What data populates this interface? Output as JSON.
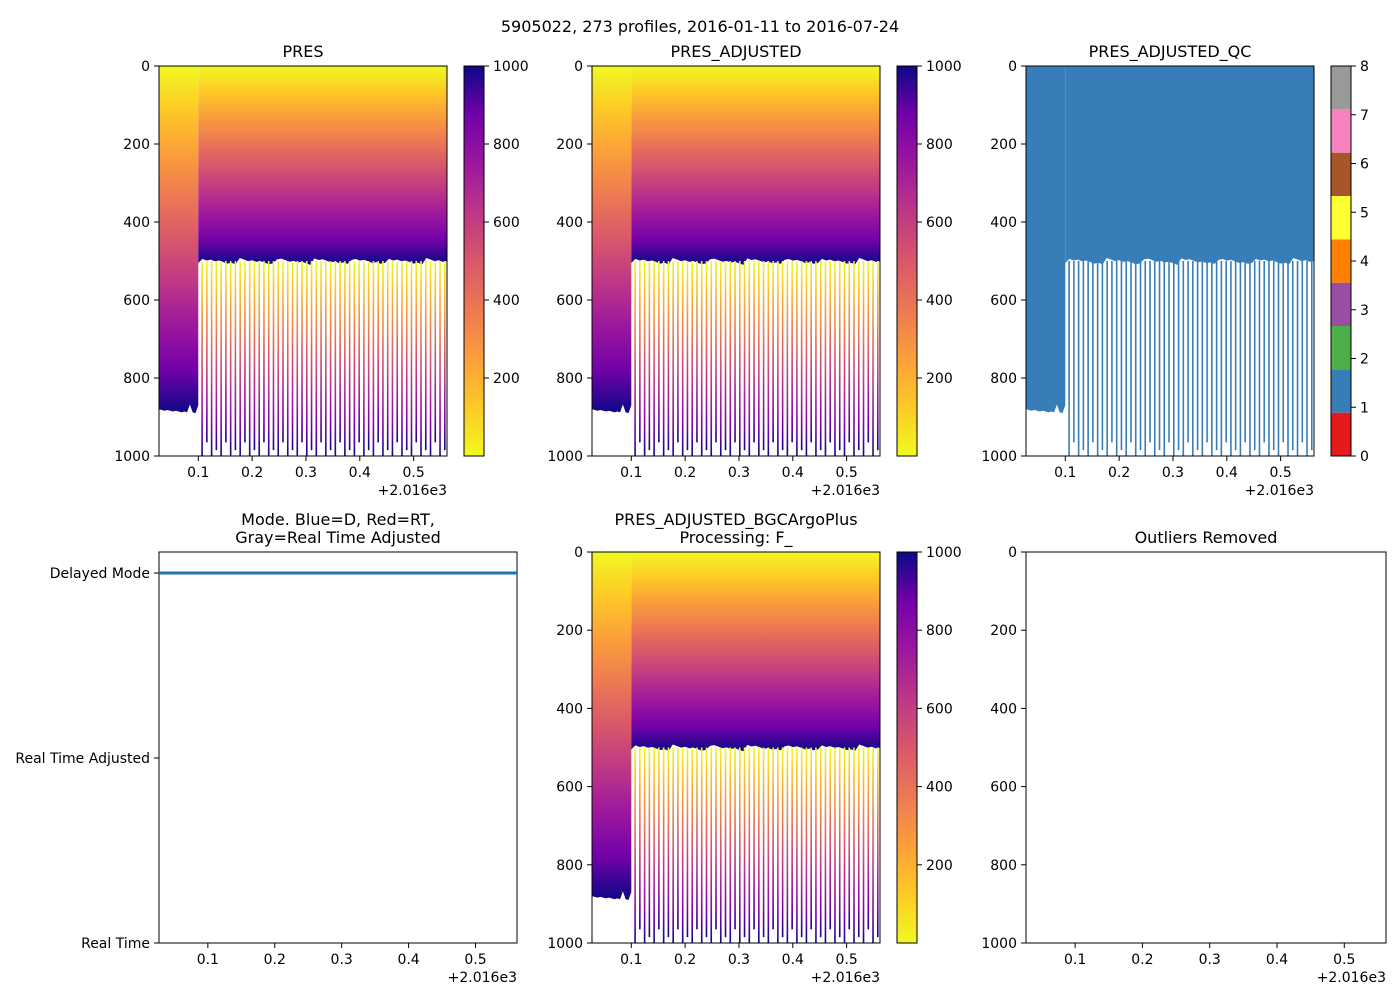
{
  "suptitle": "5905022, 273 profiles, 2016-01-11 to 2016-07-24",
  "chart_data": [
    {
      "type": "heatmap",
      "title": "PRES",
      "x_offset_label": "+2.016e3",
      "x_ticks": [
        "0.1",
        "0.2",
        "0.3",
        "0.4",
        "0.5"
      ],
      "y_ticks": [
        "0",
        "200",
        "400",
        "600",
        "800",
        "1000"
      ],
      "xlim": [
        0.027,
        0.562
      ],
      "ylim": [
        1000,
        0
      ],
      "colormap": "plasma_r",
      "colorbar_ticks": [
        "200",
        "400",
        "600",
        "800",
        "1000"
      ],
      "colorbar_range": [
        0,
        1000
      ],
      "early_segment": {
        "x_end": 0.1,
        "max_depth": 890
      },
      "later_profiles": {
        "x_start": 0.1,
        "x_end": 0.562,
        "surface_limit": 505,
        "deep_lines_to": 1000
      }
    },
    {
      "type": "heatmap",
      "title": "PRES_ADJUSTED",
      "x_offset_label": "+2.016e3",
      "x_ticks": [
        "0.1",
        "0.2",
        "0.3",
        "0.4",
        "0.5"
      ],
      "y_ticks": [
        "0",
        "200",
        "400",
        "600",
        "800",
        "1000"
      ],
      "xlim": [
        0.027,
        0.562
      ],
      "ylim": [
        1000,
        0
      ],
      "colormap": "plasma_r",
      "colorbar_ticks": [
        "200",
        "400",
        "600",
        "800",
        "1000"
      ],
      "colorbar_range": [
        0,
        1000
      ],
      "early_segment": {
        "x_end": 0.1,
        "max_depth": 890
      },
      "later_profiles": {
        "x_start": 0.1,
        "x_end": 0.562,
        "surface_limit": 505,
        "deep_lines_to": 1000
      }
    },
    {
      "type": "heatmap",
      "title": "PRES_ADJUSTED_QC",
      "x_offset_label": "+2.016e3",
      "x_ticks": [
        "0.1",
        "0.2",
        "0.3",
        "0.4",
        "0.5"
      ],
      "y_ticks": [
        "0",
        "200",
        "400",
        "600",
        "800",
        "1000"
      ],
      "xlim": [
        0.027,
        0.562
      ],
      "ylim": [
        1000,
        0
      ],
      "qc_value": 1,
      "colorbar_ticks": [
        "0",
        "1",
        "2",
        "3",
        "4",
        "5",
        "6",
        "7",
        "8"
      ],
      "qc_colors": [
        "#e41a1c",
        "#377eb8",
        "#4daf4a",
        "#984ea3",
        "#ff7f00",
        "#ffff33",
        "#a65628",
        "#f781bf",
        "#999999"
      ],
      "early_segment": {
        "x_end": 0.1,
        "max_depth": 890
      },
      "later_profiles": {
        "x_start": 0.1,
        "x_end": 0.562,
        "surface_limit": 505,
        "deep_lines_to": 1000
      }
    },
    {
      "type": "line",
      "title_line1": "Mode. Blue=D, Red=RT,",
      "title_line2": "Gray=Real Time Adjusted",
      "x_offset_label": "+2.016e3",
      "x_ticks": [
        "0.1",
        "0.2",
        "0.3",
        "0.4",
        "0.5"
      ],
      "xlim": [
        0.027,
        0.562
      ],
      "y_categories": [
        "Delayed Mode",
        "Real Time Adjusted",
        "Real Time"
      ],
      "series": [
        {
          "name": "D",
          "color": "#1f77b4",
          "y": "Delayed Mode",
          "x": [
            0.027,
            0.562
          ]
        }
      ]
    },
    {
      "type": "heatmap",
      "title_line1": "PRES_ADJUSTED_BGCArgoPlus",
      "title_line2": "Processing: F_",
      "x_offset_label": "+2.016e3",
      "x_ticks": [
        "0.1",
        "0.2",
        "0.3",
        "0.4",
        "0.5"
      ],
      "y_ticks": [
        "0",
        "200",
        "400",
        "600",
        "800",
        "1000"
      ],
      "xlim": [
        0.027,
        0.562
      ],
      "ylim": [
        1000,
        0
      ],
      "colormap": "plasma_r",
      "colorbar_ticks": [
        "200",
        "400",
        "600",
        "800",
        "1000"
      ],
      "colorbar_range": [
        0,
        1000
      ],
      "early_segment": {
        "x_end": 0.1,
        "max_depth": 890
      },
      "later_profiles": {
        "x_start": 0.1,
        "x_end": 0.562,
        "surface_limit": 505,
        "deep_lines_to": 1000
      }
    },
    {
      "type": "scatter",
      "title": "Outliers Removed",
      "x_offset_label": "+2.016e3",
      "x_ticks": [
        "0.1",
        "0.2",
        "0.3",
        "0.4",
        "0.5"
      ],
      "y_ticks": [
        "0",
        "200",
        "400",
        "600",
        "800",
        "1000"
      ],
      "xlim": [
        0.027,
        0.562
      ],
      "ylim": [
        1000,
        0
      ],
      "points": []
    }
  ]
}
